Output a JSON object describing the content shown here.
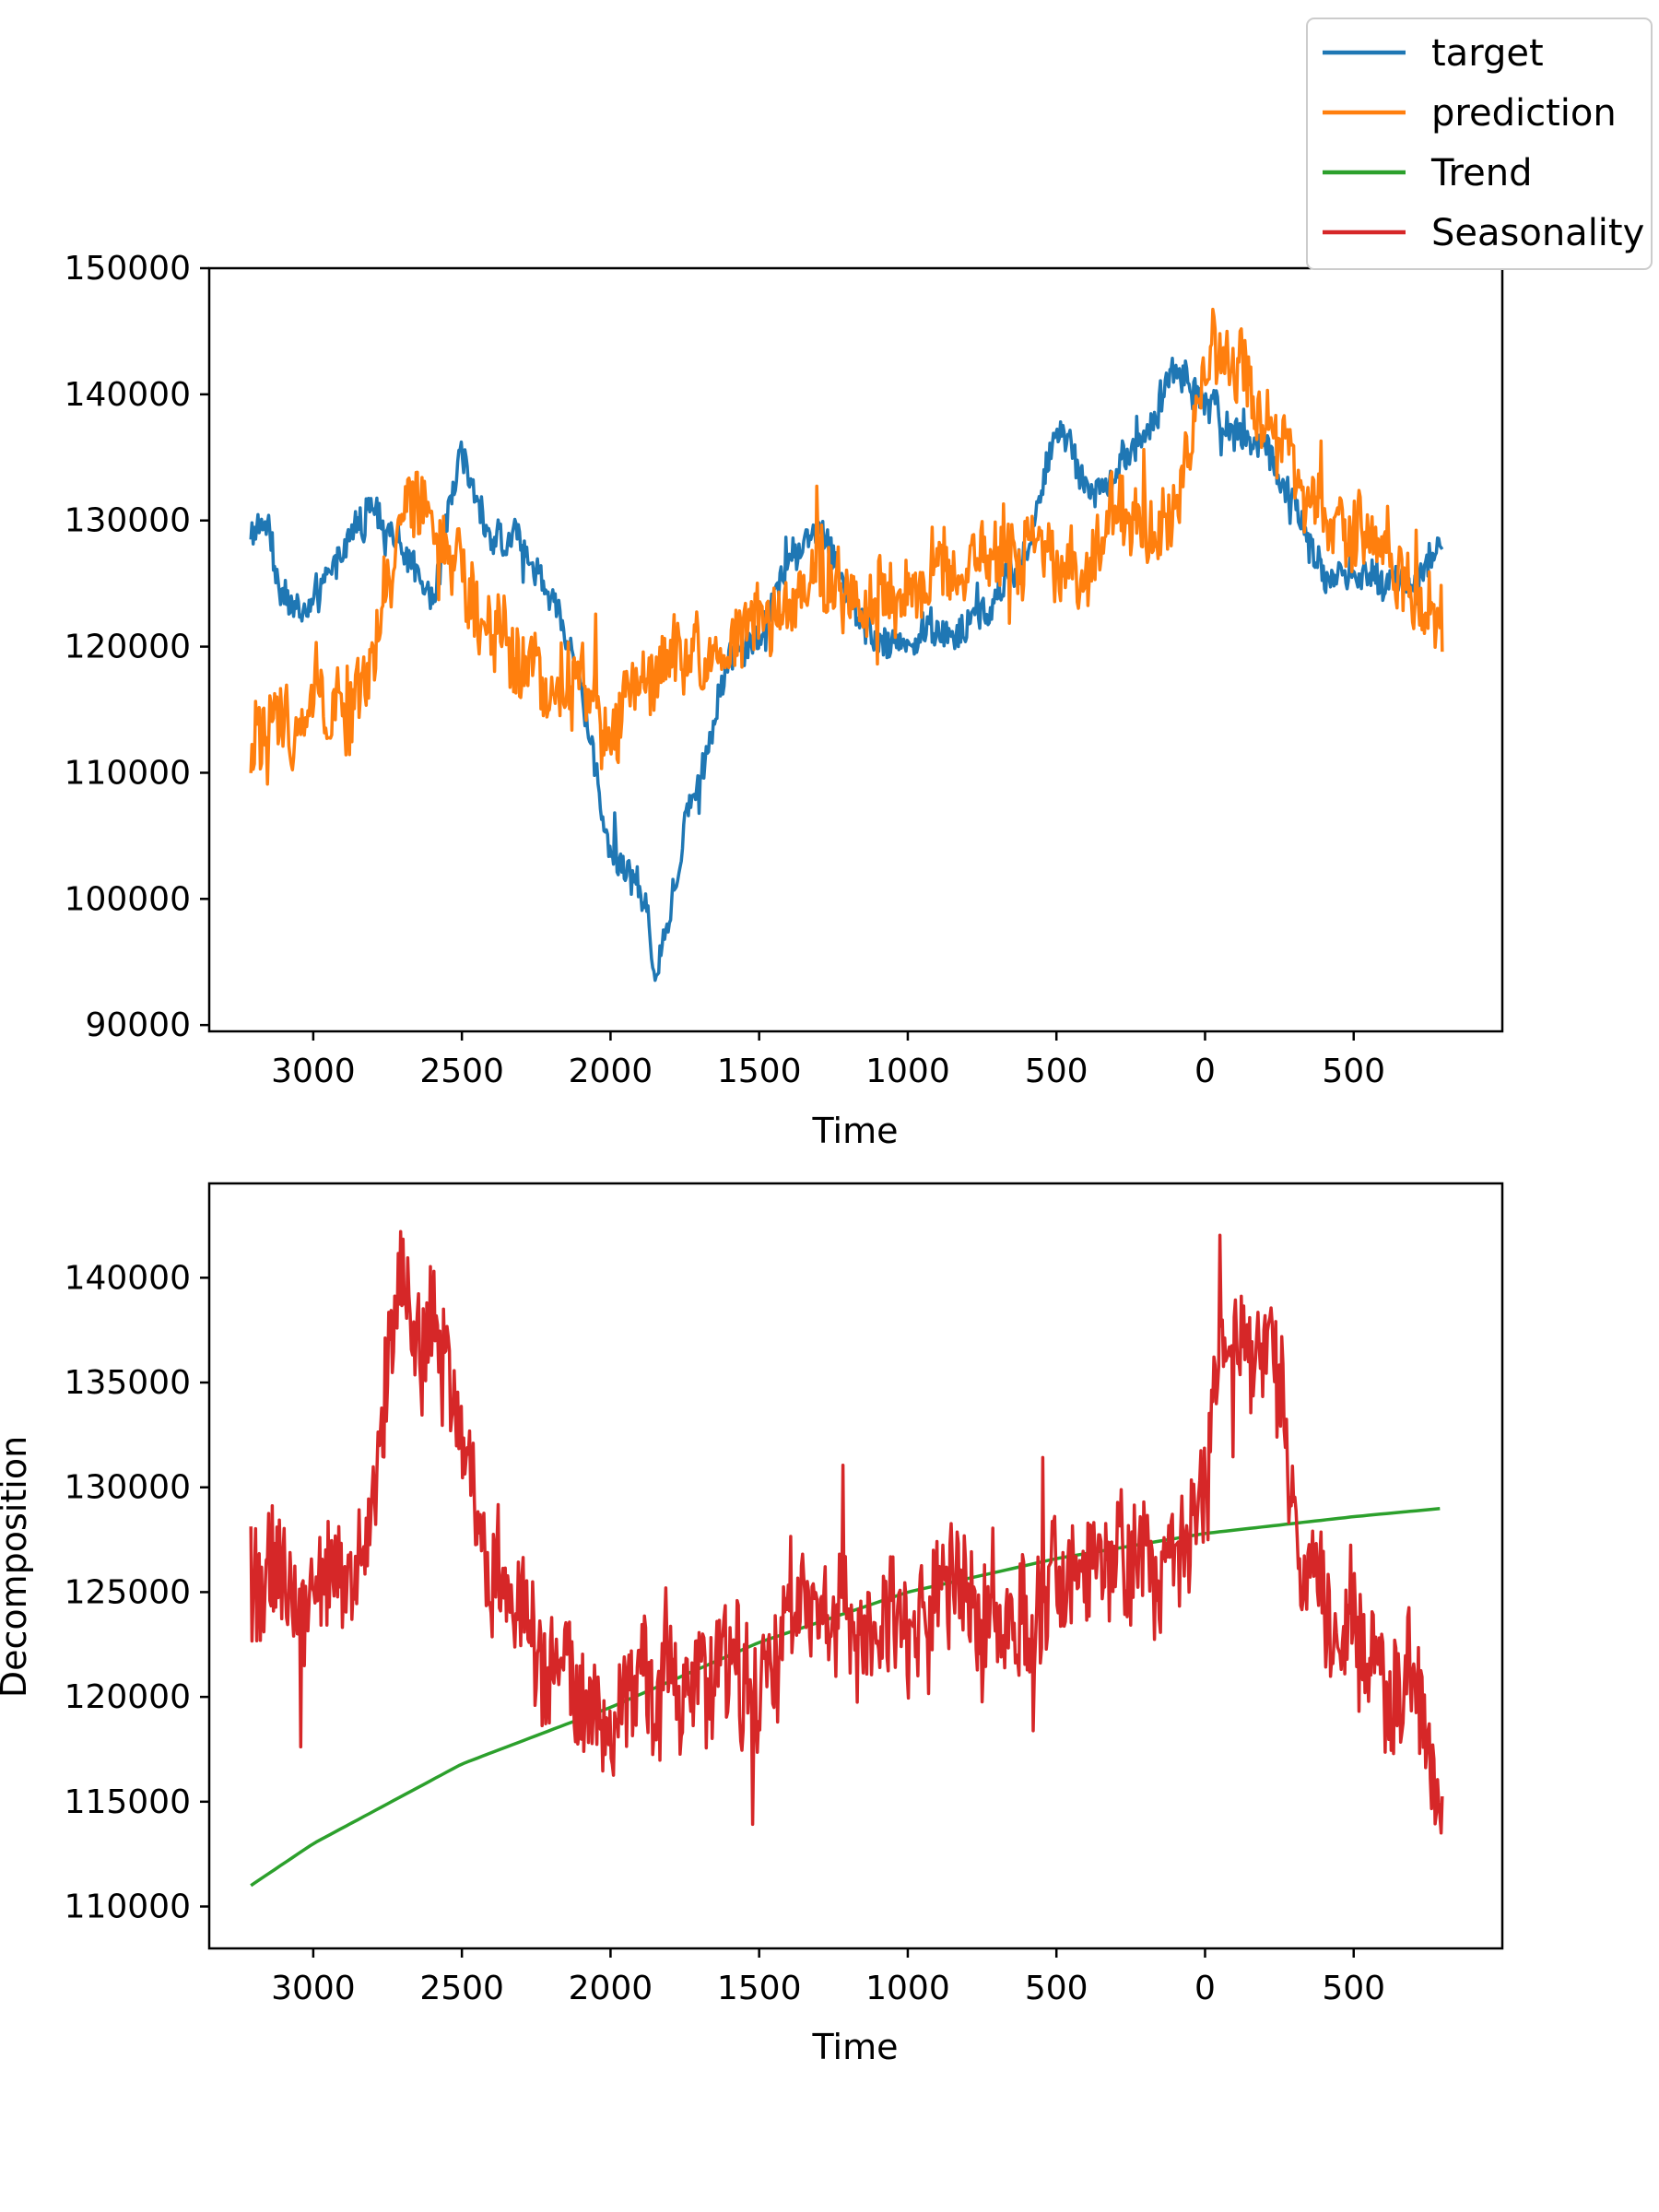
{
  "legend": {
    "entries": [
      {
        "label": "target",
        "color": "#1f77b4"
      },
      {
        "label": "prediction",
        "color": "#ff7f0e"
      },
      {
        "label": "Trend",
        "color": "#2ca02c"
      },
      {
        "label": "Seasonality",
        "color": "#d62728"
      }
    ],
    "placement": "top-right"
  },
  "chart_data": [
    {
      "type": "line",
      "title": "",
      "xlabel": "Time",
      "ylabel": "",
      "xlim": [
        -3350,
        1000
      ],
      "ylim": [
        89500,
        150000
      ],
      "x_tick_values": [
        -3000,
        -2500,
        -2000,
        -1500,
        -1000,
        -500,
        0,
        500
      ],
      "x_tick_labels": [
        "3000",
        "2500",
        "2000",
        "1500",
        "1000",
        "500",
        "0",
        "500"
      ],
      "y_ticks": [
        90000,
        100000,
        110000,
        120000,
        130000,
        140000,
        150000
      ],
      "y_tick_labels": [
        "90000",
        "100000",
        "110000",
        "120000",
        "130000",
        "140000",
        "150000"
      ],
      "series": [
        {
          "name": "target",
          "color": "#1f77b4",
          "noise": 1500,
          "x": [
            -3210,
            -3150,
            -3100,
            -3000,
            -2900,
            -2800,
            -2700,
            -2600,
            -2500,
            -2400,
            -2300,
            -2200,
            -2100,
            -2000,
            -1950,
            -1900,
            -1850,
            -1800,
            -1750,
            -1700,
            -1600,
            -1500,
            -1400,
            -1300,
            -1200,
            -1100,
            -1000,
            -900,
            -800,
            -700,
            -600,
            -500,
            -450,
            -400,
            -300,
            -200,
            -100,
            0,
            100,
            200,
            300,
            400,
            500,
            600,
            700,
            800
          ],
          "y": [
            129000,
            130000,
            124000,
            123000,
            128000,
            131000,
            128000,
            124000,
            135000,
            129000,
            128000,
            124000,
            117000,
            104000,
            103000,
            101000,
            94000,
            99000,
            106000,
            110000,
            119000,
            121000,
            127000,
            129000,
            125000,
            120000,
            121000,
            121000,
            121000,
            124000,
            127000,
            138000,
            136000,
            133000,
            133000,
            137000,
            142000,
            140000,
            137000,
            136000,
            131000,
            125000,
            126000,
            126000,
            125000,
            129000
          ]
        },
        {
          "name": "prediction",
          "color": "#ff7f0e",
          "noise": 3200,
          "x": [
            -3210,
            -3100,
            -3000,
            -2900,
            -2800,
            -2700,
            -2600,
            -2500,
            -2400,
            -2300,
            -2200,
            -2100,
            -2050,
            -2000,
            -1900,
            -1800,
            -1700,
            -1600,
            -1500,
            -1400,
            -1300,
            -1200,
            -1100,
            -1000,
            -900,
            -800,
            -700,
            -600,
            -500,
            -400,
            -300,
            -200,
            -100,
            0,
            100,
            200,
            300,
            400,
            500,
            600,
            700,
            800
          ],
          "y": [
            112000,
            114000,
            116000,
            116000,
            117000,
            130000,
            130000,
            126000,
            122000,
            118000,
            117000,
            117000,
            115000,
            113000,
            117000,
            119000,
            119000,
            121000,
            121000,
            122000,
            125000,
            124000,
            124000,
            124000,
            126000,
            126000,
            127000,
            128000,
            125000,
            127000,
            129000,
            129000,
            131000,
            142000,
            144000,
            138000,
            133000,
            130000,
            129000,
            127000,
            126000,
            122000
          ]
        }
      ]
    },
    {
      "type": "line",
      "title": "",
      "xlabel": "Time",
      "ylabel": "Decomposition",
      "xlim": [
        -3350,
        1000
      ],
      "ylim": [
        108000,
        144500
      ],
      "x_tick_values": [
        -3000,
        -2500,
        -2000,
        -1500,
        -1000,
        -500,
        0,
        500
      ],
      "x_tick_labels": [
        "3000",
        "2500",
        "2000",
        "1500",
        "1000",
        "500",
        "0",
        "500"
      ],
      "y_ticks": [
        110000,
        115000,
        120000,
        125000,
        130000,
        135000,
        140000
      ],
      "y_tick_labels": [
        "110000",
        "115000",
        "120000",
        "125000",
        "130000",
        "135000",
        "140000"
      ],
      "series": [
        {
          "name": "Trend",
          "color": "#2ca02c",
          "noise": 0,
          "x": [
            -3210,
            -3000,
            -2500,
            -2000,
            -1500,
            -1000,
            -500,
            0,
            500,
            800
          ],
          "y": [
            111000,
            113000,
            116800,
            119500,
            122600,
            125000,
            126600,
            127800,
            128600,
            129000
          ]
        },
        {
          "name": "Seasonality",
          "color": "#d62728",
          "noise": 3200,
          "x": [
            -3210,
            -3100,
            -3000,
            -2900,
            -2800,
            -2750,
            -2700,
            -2600,
            -2500,
            -2400,
            -2300,
            -2200,
            -2100,
            -2000,
            -1900,
            -1800,
            -1700,
            -1600,
            -1500,
            -1400,
            -1300,
            -1200,
            -1100,
            -1000,
            -900,
            -800,
            -700,
            -600,
            -500,
            -400,
            -300,
            -200,
            -100,
            0,
            50,
            100,
            200,
            300,
            400,
            500,
            600,
            700,
            800
          ],
          "y": [
            126000,
            125000,
            126000,
            126000,
            127000,
            136000,
            139000,
            138000,
            133000,
            127000,
            123000,
            122000,
            120000,
            119000,
            121000,
            121000,
            121000,
            122000,
            122000,
            123000,
            125000,
            124000,
            124000,
            123000,
            124000,
            124000,
            124000,
            124000,
            124000,
            124000,
            126000,
            126000,
            127000,
            128000,
            138000,
            139000,
            136000,
            131000,
            124000,
            122000,
            121000,
            120000,
            116000
          ]
        }
      ]
    }
  ]
}
